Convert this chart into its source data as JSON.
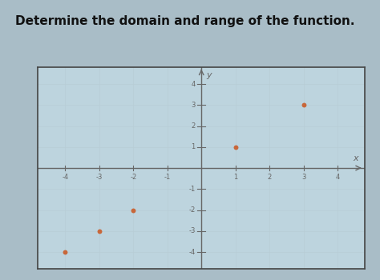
{
  "title": "Determine the domain and range of the function.",
  "title_fontsize": 11,
  "title_fontweight": "bold",
  "title_fontstyle": "italic",
  "title_fontfamily": "sans-serif",
  "points": [
    [
      1,
      1
    ],
    [
      3,
      3
    ],
    [
      -2,
      -2
    ],
    [
      -3,
      -3
    ],
    [
      -4,
      -4
    ]
  ],
  "point_color": "#c8673a",
  "point_size": 18,
  "xlim": [
    -4.8,
    4.8
  ],
  "ylim": [
    -4.8,
    4.8
  ],
  "xticks": [
    -4,
    -3,
    -2,
    -1,
    1,
    2,
    3,
    4
  ],
  "yticks": [
    -4,
    -3,
    -2,
    -1,
    1,
    2,
    3,
    4
  ],
  "xlabel": "x",
  "ylabel": "y",
  "grid_color": "#b8cdd6",
  "axis_color": "#666666",
  "background_color": "#bdd4de",
  "outer_background": "#a9bdc7",
  "tick_fontsize": 6,
  "label_fontsize": 8,
  "box_edge_color": "#444444"
}
